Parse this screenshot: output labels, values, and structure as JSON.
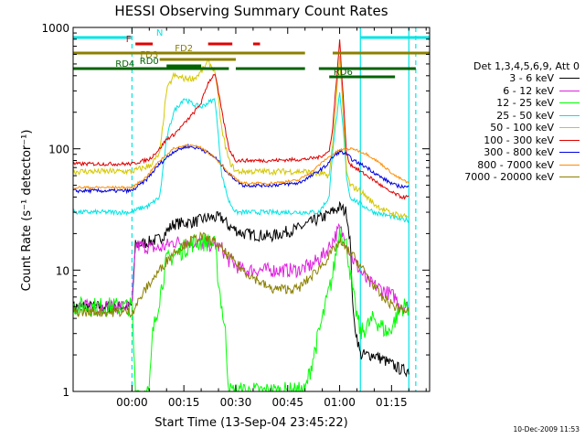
{
  "chart_data": {
    "type": "line",
    "title": "HESSI Observing Summary Count Rates",
    "xlabel": "Start Time (13-Sep-04 23:45:22)",
    "ylabel": "Count Rate (s⁻¹ detector⁻¹)",
    "yscale": "log",
    "ylim": [
      1,
      1000
    ],
    "xlim": [
      -17,
      86
    ],
    "x_units": "minutes after 00:00 on 14-Sep-04",
    "xticks": [
      {
        "value": 0,
        "label": "00:00"
      },
      {
        "value": 15,
        "label": "00:15"
      },
      {
        "value": 30,
        "label": "00:30"
      },
      {
        "value": 45,
        "label": "00:45"
      },
      {
        "value": 60,
        "label": "01:00"
      },
      {
        "value": 75,
        "label": "01:15"
      }
    ],
    "yticks": [
      {
        "value": 1,
        "label": "1"
      },
      {
        "value": 10,
        "label": "10"
      },
      {
        "value": 100,
        "label": "100"
      },
      {
        "value": 1000,
        "label": "1000"
      }
    ],
    "grid": false,
    "legend_title": "Det 1,3,4,5,6,9, Att 0",
    "legend_position": "right",
    "timestamp": "10-Dec-2009 11:53",
    "series": [
      {
        "name": "3 - 6 keV",
        "color": "#000000",
        "x": [
          -17,
          0,
          1,
          8,
          12,
          18,
          22,
          26,
          28,
          32,
          40,
          48,
          52,
          56,
          60,
          62,
          63,
          64,
          66,
          70,
          78,
          80
        ],
        "y": [
          5,
          5,
          16,
          18,
          24,
          25,
          27,
          27,
          23,
          20,
          19,
          22,
          25,
          28,
          33,
          30,
          18,
          4,
          2,
          2,
          1.5,
          1.5
        ]
      },
      {
        "name": "6 - 12 keV",
        "color": "#e020e0",
        "x": [
          -17,
          0,
          1,
          8,
          12,
          18,
          24,
          26,
          28,
          32,
          40,
          48,
          52,
          56,
          60,
          62,
          64,
          68,
          72,
          76,
          78,
          80
        ],
        "y": [
          5,
          5,
          16,
          15,
          17,
          17,
          16,
          15,
          12,
          10,
          10,
          10,
          11,
          14,
          22,
          17,
          12,
          8,
          7,
          6,
          5,
          5
        ]
      },
      {
        "name": "12 - 25 keV",
        "color": "#00ff00",
        "x": [
          -17,
          0,
          1,
          5,
          6,
          10,
          18,
          22,
          24,
          25,
          27,
          28,
          50,
          54,
          58,
          60,
          62,
          64,
          66,
          70,
          74,
          78,
          80
        ],
        "y": [
          5,
          5,
          1,
          1,
          3,
          12,
          17,
          17,
          16,
          8,
          3,
          1,
          1,
          3,
          9,
          22,
          16,
          6,
          3,
          4,
          3,
          5,
          5
        ]
      },
      {
        "name": "25 - 50 keV",
        "color": "#00e5e5",
        "x": [
          -17,
          0,
          2,
          5,
          8,
          10,
          12,
          15,
          18,
          20,
          22,
          24,
          26,
          28,
          30,
          40,
          50,
          54,
          57,
          58,
          60,
          61,
          62,
          63,
          66,
          70,
          74,
          78,
          80
        ],
        "y": [
          30,
          30,
          32,
          34,
          40,
          120,
          200,
          260,
          230,
          220,
          240,
          255,
          60,
          37,
          30,
          30,
          30,
          30,
          40,
          100,
          280,
          150,
          60,
          40,
          35,
          30,
          28,
          26,
          26
        ]
      },
      {
        "name": "50 - 100 keV",
        "color": "#d4c800",
        "x": [
          -17,
          0,
          2,
          5,
          8,
          10,
          12,
          15,
          18,
          20,
          22,
          24,
          26,
          28,
          30,
          40,
          50,
          54,
          57,
          58,
          60,
          61,
          62,
          63,
          66,
          70,
          74,
          78,
          80
        ],
        "y": [
          65,
          65,
          68,
          72,
          90,
          300,
          400,
          380,
          380,
          430,
          520,
          440,
          140,
          80,
          65,
          65,
          65,
          62,
          60,
          110,
          580,
          200,
          65,
          50,
          45,
          35,
          30,
          28,
          28
        ]
      },
      {
        "name": "100 - 300 keV",
        "color": "#e00000",
        "x": [
          -17,
          0,
          2,
          5,
          8,
          10,
          12,
          15,
          18,
          20,
          22,
          24,
          26,
          28,
          30,
          40,
          50,
          54,
          57,
          58,
          60,
          61,
          62,
          63,
          66,
          70,
          74,
          78,
          80
        ],
        "y": [
          75,
          75,
          78,
          82,
          100,
          120,
          130,
          160,
          200,
          240,
          350,
          420,
          200,
          100,
          80,
          80,
          82,
          85,
          95,
          150,
          780,
          280,
          90,
          75,
          65,
          55,
          45,
          40,
          40
        ]
      },
      {
        "name": "300 - 800 keV",
        "color": "#0000e0",
        "x": [
          -17,
          0,
          4,
          8,
          12,
          16,
          20,
          24,
          28,
          32,
          40,
          48,
          52,
          56,
          58,
          60,
          62,
          64,
          68,
          72,
          76,
          80
        ],
        "y": [
          45,
          45,
          55,
          75,
          95,
          105,
          100,
          85,
          62,
          50,
          50,
          52,
          60,
          72,
          85,
          95,
          90,
          80,
          70,
          58,
          50,
          48
        ]
      },
      {
        "name": "800 - 7000 keV",
        "color": "#ff8c00",
        "x": [
          -17,
          0,
          4,
          8,
          12,
          16,
          20,
          24,
          28,
          32,
          40,
          48,
          52,
          56,
          60,
          64,
          68,
          72,
          76,
          80
        ],
        "y": [
          48,
          48,
          58,
          80,
          100,
          108,
          102,
          85,
          62,
          52,
          52,
          55,
          65,
          82,
          98,
          100,
          90,
          75,
          60,
          52
        ]
      },
      {
        "name": "7000 - 20000 keV",
        "color": "#8b8000",
        "x": [
          -17,
          0,
          4,
          8,
          12,
          16,
          20,
          24,
          28,
          32,
          40,
          48,
          52,
          56,
          60,
          64,
          68,
          72,
          76,
          80
        ],
        "y": [
          4.5,
          4.5,
          7,
          10,
          14,
          17,
          19,
          17,
          13,
          10,
          7,
          7,
          9,
          12,
          17,
          13,
          9,
          6,
          5,
          4.5
        ]
      }
    ],
    "markers": [
      {
        "label": "N",
        "color": "#00e5e5",
        "segments": [
          [
            -17,
            0
          ],
          [
            66,
            86
          ]
        ]
      },
      {
        "label": "F",
        "color": "#e00000",
        "segments": [
          [
            1,
            6
          ],
          [
            22,
            29
          ],
          [
            35,
            37
          ]
        ]
      },
      {
        "label": "FD2",
        "color": "#8b8000",
        "segments": [
          [
            -17,
            50
          ],
          [
            58,
            86
          ]
        ]
      },
      {
        "label": "FD3",
        "color": "#8b8000",
        "segments": [
          [
            8,
            30
          ]
        ]
      },
      {
        "label": "RD0",
        "color": "#006400",
        "segments": [
          [
            10,
            20
          ]
        ]
      },
      {
        "label": "RD4",
        "color": "#006400",
        "segments": [
          [
            -17,
            28
          ],
          [
            30,
            50
          ],
          [
            54,
            82
          ]
        ]
      },
      {
        "label": "RD6",
        "color": "#006400",
        "segments": [
          [
            57,
            76
          ]
        ]
      }
    ],
    "vlines": [
      {
        "x": 0,
        "color": "#00e5e5",
        "style": "dashed"
      },
      {
        "x": 66,
        "color": "#00e5e5",
        "style": "solid"
      },
      {
        "x": 80,
        "color": "#00e5e5",
        "style": "solid"
      },
      {
        "x": 82,
        "color": "#00e5e5",
        "style": "dashed"
      }
    ]
  }
}
